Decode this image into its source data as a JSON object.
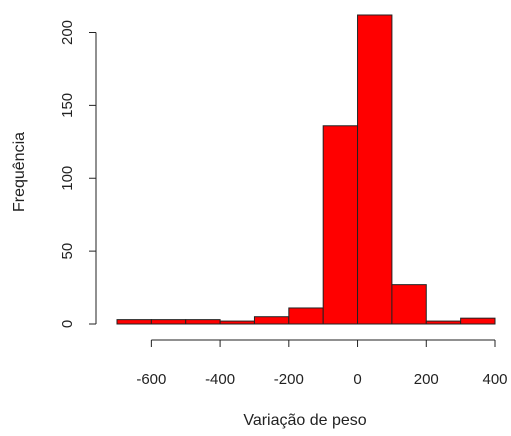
{
  "chart_data": {
    "type": "bar",
    "title": "",
    "xlabel": "Variação de peso",
    "ylabel": "Frequência",
    "bin_edges": [
      -700,
      -600,
      -500,
      -400,
      -300,
      -200,
      -100,
      0,
      100,
      200,
      300,
      400
    ],
    "values": [
      3,
      3,
      3,
      2,
      5,
      11,
      136,
      212,
      27,
      2,
      4
    ],
    "xlim": [
      -700,
      400
    ],
    "ylim": [
      0,
      212
    ],
    "x_ticks": [
      -600,
      -400,
      -200,
      0,
      200,
      400
    ],
    "y_ticks": [
      0,
      50,
      100,
      150,
      200
    ],
    "bar_color": "#ff0000",
    "bar_edge_color": "#222222",
    "grid": false
  }
}
